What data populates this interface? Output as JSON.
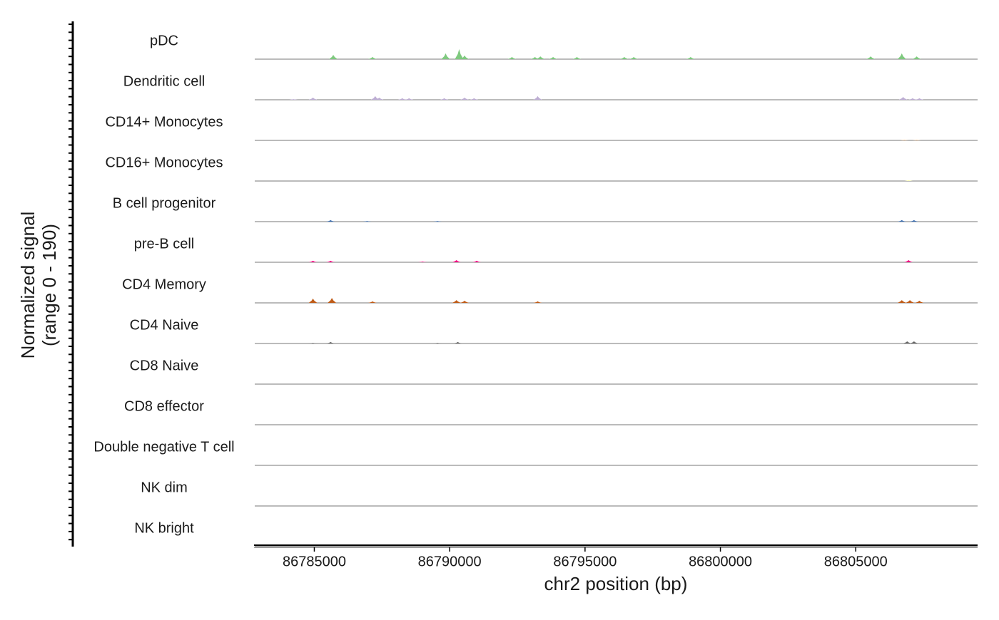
{
  "chart_data": {
    "type": "coverage",
    "ylabel": [
      "Normalized signal",
      "(range 0 - 190)"
    ],
    "xlabel": "chr2 position (bp)",
    "xlim": [
      86782800,
      86809500
    ],
    "xticks": [
      86785000,
      86790000,
      86795000,
      86800000,
      86805000
    ],
    "ylim": [
      0,
      190
    ],
    "series": [
      {
        "name": "pDC",
        "color": "#7fc97f",
        "x": [
          86785700,
          86787150,
          86789850,
          86790350,
          86790550,
          86792300,
          86793150,
          86793350,
          86793820,
          86794700,
          86796450,
          86796800,
          86798900,
          86805550,
          86806700,
          86807250
        ],
        "values": [
          20,
          10,
          27,
          47,
          17,
          10,
          10,
          13,
          10,
          10,
          10,
          10,
          10,
          13,
          27,
          13
        ]
      },
      {
        "name": "Dendritic cell",
        "color": "#beaed4",
        "x": [
          86784230,
          86784950,
          86787250,
          86787400,
          86788250,
          86788500,
          86789800,
          86790550,
          86790900,
          86793250,
          86806750,
          86807100,
          86807350
        ],
        "values": [
          3,
          10,
          17,
          10,
          7,
          7,
          7,
          10,
          7,
          17,
          13,
          7,
          7
        ]
      },
      {
        "name": "CD14+ Monocytes",
        "color": "#fdc086",
        "x": [
          86806800,
          86807250
        ],
        "values": [
          3,
          3
        ]
      },
      {
        "name": "CD16+ Monocytes",
        "color": "#ffff99",
        "x": [
          86806950
        ],
        "values": [
          3
        ]
      },
      {
        "name": "B cell progenitor",
        "color": "#386cb0",
        "x": [
          86785600,
          86786950,
          86789550,
          86806700,
          86807150
        ],
        "values": [
          7,
          3,
          3,
          7,
          7
        ]
      },
      {
        "name": "pre-B cell",
        "color": "#f0027f",
        "x": [
          86784950,
          86785600,
          86789000,
          86790250,
          86791000,
          86806950
        ],
        "values": [
          7,
          7,
          3,
          10,
          7,
          10
        ]
      },
      {
        "name": "CD4 Memory",
        "color": "#bf5b17",
        "x": [
          86784950,
          86785650,
          86787150,
          86790250,
          86790550,
          86793250,
          86806700,
          86807000,
          86807350
        ],
        "values": [
          20,
          23,
          7,
          13,
          10,
          7,
          13,
          13,
          10
        ]
      },
      {
        "name": "CD4 Naive",
        "color": "#666666",
        "x": [
          86784950,
          86785600,
          86789550,
          86790300,
          86806900,
          86807150
        ],
        "values": [
          3,
          7,
          3,
          7,
          10,
          10
        ]
      },
      {
        "name": "CD8 Naive",
        "color": "#7fc97f",
        "x": [],
        "values": []
      },
      {
        "name": "CD8 effector",
        "color": "#beaed4",
        "x": [],
        "values": []
      },
      {
        "name": "Double negative T cell",
        "color": "#fdc086",
        "x": [],
        "values": []
      },
      {
        "name": "NK dim",
        "color": "#ffff99",
        "x": [],
        "values": []
      },
      {
        "name": "NK bright",
        "color": "#386cb0",
        "x": [],
        "values": []
      }
    ]
  }
}
